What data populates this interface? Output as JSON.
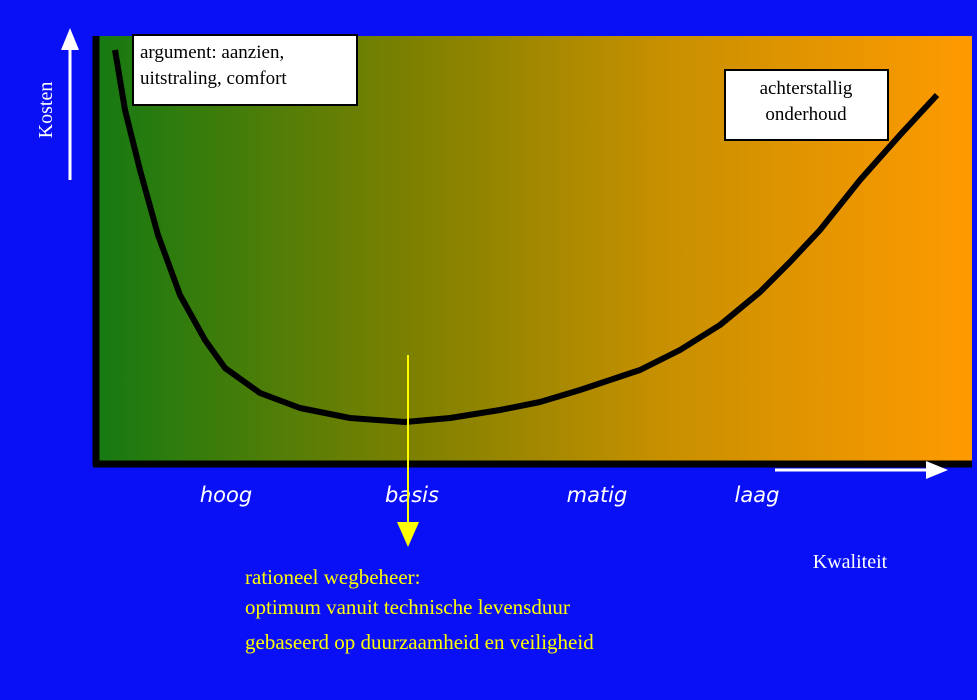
{
  "y_axis_label": "Kosten",
  "x_axis_label": "Kwaliteit",
  "annotations": [
    {
      "lines": [
        "argument: aanzien,",
        "uitstraling, comfort"
      ]
    },
    {
      "lines": [
        "achterstallig",
        "onderhoud"
      ]
    }
  ],
  "categories": [
    "hoog",
    "basis",
    "matig",
    "laag"
  ],
  "note": {
    "lines": [
      "rationeel wegbeheer:",
      "optimum vanuit technische levensduur",
      "gebaseerd op duurzaamheid en veiligheid"
    ]
  }
}
